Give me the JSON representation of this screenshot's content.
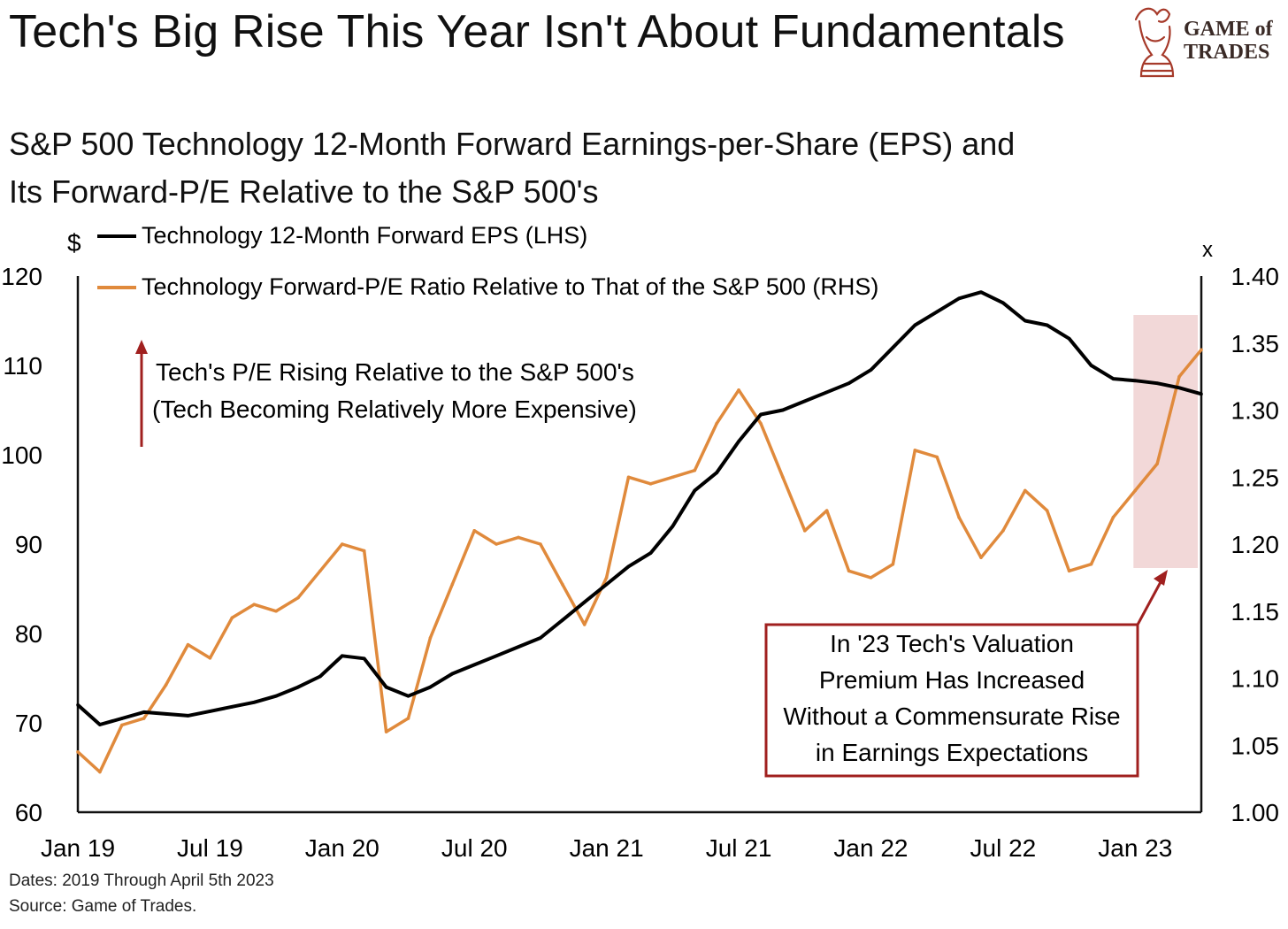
{
  "header": {
    "title": "Tech's Big Rise This Year Isn't About Fundamentals",
    "logo_line1": "GAME of",
    "logo_line2": "TRADES"
  },
  "subtitle": {
    "line1": "S&P 500 Technology 12-Month Forward Earnings-per-Share (EPS) and",
    "line2": "Its Forward-P/E Relative to the S&P 500's"
  },
  "footer": {
    "dates": "Dates: 2019 Through April 5th 2023",
    "source": "Source: Game of Trades."
  },
  "colors": {
    "eps": "#000000",
    "pe": "#e08a3c",
    "annotation": "#b22222",
    "highlight": "#f2d8d8",
    "logo": "#a63a2a"
  },
  "chart_data": {
    "type": "line",
    "x_axis": {
      "tick_labels": [
        "Jan 19",
        "Jul 19",
        "Jan 20",
        "Jul 20",
        "Jan 21",
        "Jul 21",
        "Jan 22",
        "Jul 22",
        "Jan 23"
      ],
      "range": [
        "2019-01",
        "2023-04"
      ]
    },
    "y_left": {
      "unit": "$",
      "range": [
        60,
        120
      ],
      "ticks": [
        60,
        70,
        80,
        90,
        100,
        110,
        120
      ]
    },
    "y_right": {
      "unit": "x",
      "range": [
        1.0,
        1.4
      ],
      "ticks": [
        "1.00",
        "1.05",
        "1.10",
        "1.15",
        "1.20",
        "1.25",
        "1.30",
        "1.35",
        "1.40"
      ]
    },
    "x": [
      "2019-01",
      "2019-02",
      "2019-03",
      "2019-04",
      "2019-05",
      "2019-06",
      "2019-07",
      "2019-08",
      "2019-09",
      "2019-10",
      "2019-11",
      "2019-12",
      "2020-01",
      "2020-02",
      "2020-03",
      "2020-04",
      "2020-05",
      "2020-06",
      "2020-07",
      "2020-08",
      "2020-09",
      "2020-10",
      "2020-11",
      "2020-12",
      "2021-01",
      "2021-02",
      "2021-03",
      "2021-04",
      "2021-05",
      "2021-06",
      "2021-07",
      "2021-08",
      "2021-09",
      "2021-10",
      "2021-11",
      "2021-12",
      "2022-01",
      "2022-02",
      "2022-03",
      "2022-04",
      "2022-05",
      "2022-06",
      "2022-07",
      "2022-08",
      "2022-09",
      "2022-10",
      "2022-11",
      "2022-12",
      "2023-01",
      "2023-02",
      "2023-03",
      "2023-04"
    ],
    "series": [
      {
        "name": "Technology 12-Month Forward EPS (LHS)",
        "axis": "left",
        "values": [
          72.0,
          69.8,
          70.5,
          71.2,
          71.0,
          70.8,
          71.3,
          71.8,
          72.3,
          73.0,
          74.0,
          75.2,
          77.5,
          77.2,
          74.0,
          73.0,
          74.0,
          75.5,
          76.5,
          77.5,
          78.5,
          79.5,
          81.5,
          83.5,
          85.5,
          87.5,
          89.0,
          92.0,
          96.0,
          98.0,
          101.5,
          104.5,
          105.0,
          106.0,
          107.0,
          108.0,
          109.5,
          112.0,
          114.5,
          116.0,
          117.5,
          118.2,
          117.0,
          115.0,
          114.5,
          113.0,
          110.0,
          108.5,
          108.3,
          108.0,
          107.5,
          106.8
        ]
      },
      {
        "name": "Technology Forward-P/E Ratio Relative to That of the S&P 500 (RHS)",
        "axis": "right",
        "values": [
          1.045,
          1.03,
          1.065,
          1.07,
          1.095,
          1.125,
          1.115,
          1.145,
          1.155,
          1.15,
          1.16,
          1.18,
          1.2,
          1.195,
          1.06,
          1.07,
          1.13,
          1.17,
          1.21,
          1.2,
          1.205,
          1.2,
          1.17,
          1.14,
          1.175,
          1.25,
          1.245,
          1.25,
          1.255,
          1.29,
          1.315,
          1.29,
          1.25,
          1.21,
          1.225,
          1.18,
          1.175,
          1.185,
          1.27,
          1.265,
          1.22,
          1.19,
          1.21,
          1.24,
          1.225,
          1.18,
          1.185,
          1.22,
          1.24,
          1.26,
          1.325,
          1.345
        ]
      }
    ],
    "annotations": [
      "Tech's P/E Rising Relative to the S&P 500's",
      "(Tech Becoming Relatively More Expensive)",
      "In '23 Tech's Valuation",
      "Premium Has Increased",
      "Without a Commensurate Rise",
      "in Earnings Expectations"
    ],
    "highlight_period": [
      "2023-01",
      "2023-04"
    ],
    "grid": false,
    "legend_position": "top-left"
  }
}
